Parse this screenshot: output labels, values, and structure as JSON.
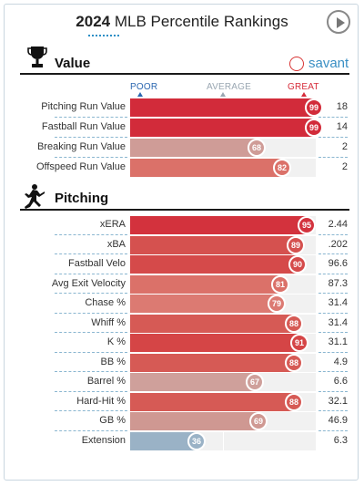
{
  "header": {
    "year": "2024",
    "title": "MLB Percentile Rankings",
    "play_label": "play"
  },
  "brand": {
    "name": "savant",
    "color": "#3a8fc4",
    "ball_color": "#d83434"
  },
  "scale": {
    "poor": "POOR",
    "average": "AVERAGE",
    "great": "GREAT",
    "poor_color": "#2b67b0",
    "average_color": "#9aa7b2",
    "great_color": "#d62c3a"
  },
  "sections": {
    "value": {
      "title": "Value",
      "icon": "trophy-icon",
      "rows": [
        {
          "label": "Pitching Run Value",
          "percentile": 99,
          "stat": "18",
          "color": "#d22b3a"
        },
        {
          "label": "Fastball Run Value",
          "percentile": 99,
          "stat": "14",
          "color": "#d22b3a"
        },
        {
          "label": "Breaking Run Value",
          "percentile": 68,
          "stat": "2",
          "color": "#cf9c97"
        },
        {
          "label": "Offspeed Run Value",
          "percentile": 82,
          "stat": "2",
          "color": "#db7169"
        }
      ]
    },
    "pitching": {
      "title": "Pitching",
      "icon": "pitcher-icon",
      "rows": [
        {
          "label": "xERA",
          "percentile": 95,
          "stat": "2.44",
          "color": "#d3323d"
        },
        {
          "label": "xBA",
          "percentile": 89,
          "stat": ".202",
          "color": "#d5514f"
        },
        {
          "label": "Fastball Velo",
          "percentile": 90,
          "stat": "96.6",
          "color": "#d54a4a"
        },
        {
          "label": "Avg Exit Velocity",
          "percentile": 81,
          "stat": "87.3",
          "color": "#db7169"
        },
        {
          "label": "Chase %",
          "percentile": 79,
          "stat": "31.4",
          "color": "#dc7a72"
        },
        {
          "label": "Whiff %",
          "percentile": 88,
          "stat": "31.4",
          "color": "#d65a55"
        },
        {
          "label": "K %",
          "percentile": 91,
          "stat": "31.1",
          "color": "#d54546"
        },
        {
          "label": "BB %",
          "percentile": 88,
          "stat": "4.9",
          "color": "#d65a55"
        },
        {
          "label": "Barrel %",
          "percentile": 67,
          "stat": "6.6",
          "color": "#cfa09b"
        },
        {
          "label": "Hard-Hit %",
          "percentile": 88,
          "stat": "32.1",
          "color": "#d65a55"
        },
        {
          "label": "GB %",
          "percentile": 69,
          "stat": "46.9",
          "color": "#cf9892"
        },
        {
          "label": "Extension",
          "percentile": 36,
          "stat": "6.3",
          "color": "#9ab2c6"
        }
      ]
    }
  }
}
